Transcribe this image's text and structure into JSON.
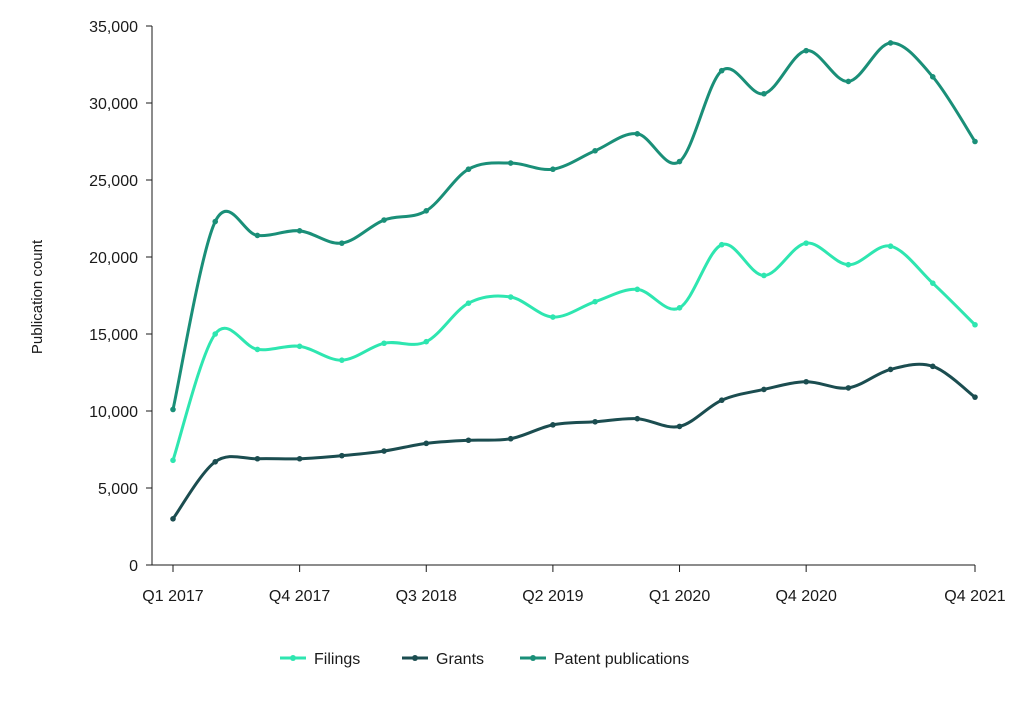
{
  "chart_data": {
    "type": "line",
    "title": "",
    "xlabel": "",
    "ylabel": "Publication count",
    "ylim": [
      0,
      35000
    ],
    "y_ticks": [
      0,
      5000,
      10000,
      15000,
      20000,
      25000,
      30000,
      35000
    ],
    "y_tick_labels": [
      "0",
      "5,000",
      "10,000",
      "15,000",
      "20,000",
      "25,000",
      "30,000",
      "35,000"
    ],
    "categories": [
      "Q1 2017",
      "Q2 2017",
      "Q3 2017",
      "Q4 2017",
      "Q1 2018",
      "Q2 2018",
      "Q3 2018",
      "Q4 2018",
      "Q1 2019",
      "Q2 2019",
      "Q3 2019",
      "Q4 2019",
      "Q1 2020",
      "Q2 2020",
      "Q3 2020",
      "Q4 2020",
      "Q1 2021",
      "Q2 2021",
      "Q3 2021",
      "Q4 2021"
    ],
    "x_tick_labels": [
      "Q1 2017",
      "Q4 2017",
      "Q3 2018",
      "Q2 2019",
      "Q1 2020",
      "Q4 2020",
      "Q4 2021"
    ],
    "grid": false,
    "legend_position": "bottom-center",
    "series": [
      {
        "name": "Filings",
        "color": "#2ee6b0",
        "values": [
          6800,
          15000,
          14000,
          14200,
          13300,
          14400,
          14500,
          17000,
          17400,
          16100,
          17100,
          17900,
          16700,
          20800,
          18800,
          20900,
          19500,
          20700,
          18300,
          15600
        ]
      },
      {
        "name": "Grants",
        "color": "#1b4d50",
        "values": [
          3000,
          6700,
          6900,
          6900,
          7100,
          7400,
          7900,
          8100,
          8200,
          9100,
          9300,
          9500,
          9000,
          10700,
          11400,
          11900,
          11500,
          12700,
          12900,
          10900
        ]
      },
      {
        "name": "Patent publications",
        "color": "#1a8f78",
        "values": [
          10100,
          22300,
          21400,
          21700,
          20900,
          22400,
          23000,
          25700,
          26100,
          25700,
          26900,
          28000,
          26200,
          32100,
          30600,
          33400,
          31400,
          33900,
          31700,
          27500
        ]
      }
    ]
  }
}
